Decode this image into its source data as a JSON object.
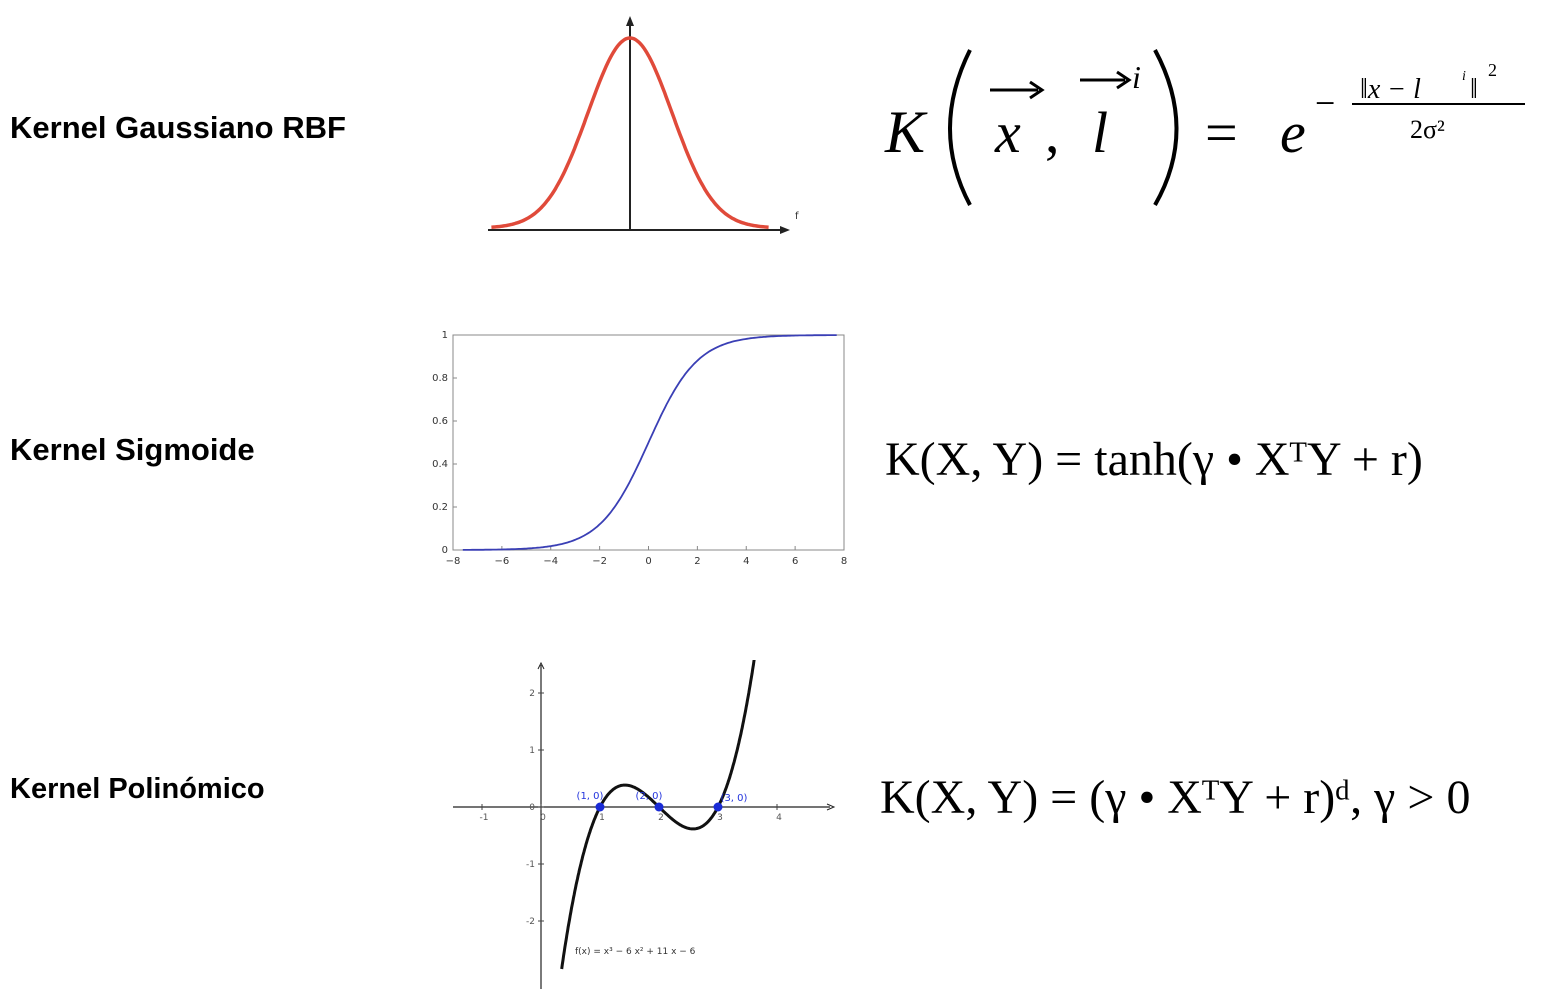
{
  "labels": {
    "rbf": "Kernel Gaussiano RBF",
    "sigmoid": "Kernel Sigmoide",
    "polynomial": "Kernel Polinómico"
  },
  "colors": {
    "gaussian_curve": "#e04a3a",
    "sigmoid_curve": "#3a3fb5",
    "polynomial_curve": "#111111",
    "root_points": "#1a2bd6"
  },
  "rbf_chart": {
    "x_axis_label": "f"
  },
  "sigmoid_chart": {
    "x_ticks": [
      "−8",
      "−6",
      "−4",
      "−2",
      "0",
      "2",
      "4",
      "6",
      "8"
    ],
    "y_ticks": [
      "0",
      "0.2",
      "0.4",
      "0.6",
      "0.8",
      "1"
    ]
  },
  "polynomial_chart": {
    "function_label": "f(x) = x³ − 6 x² + 11 x − 6",
    "x_ticks": [
      "-1",
      "0",
      "1",
      "2",
      "3",
      "4"
    ],
    "y_ticks": [
      "2",
      "1",
      "0",
      "-1",
      "-2"
    ],
    "roots": [
      {
        "label": "(1, 0)",
        "x": 1,
        "y": 0
      },
      {
        "label": "(2, 0)",
        "x": 2,
        "y": 0
      },
      {
        "label": "(3, 0)",
        "x": 3,
        "y": 0
      }
    ]
  },
  "chart_data": [
    {
      "type": "line",
      "title": "",
      "series": [
        {
          "name": "",
          "function": "exp(-x^2/2)"
        }
      ],
      "grid": false
    },
    {
      "type": "line",
      "title": "",
      "xlim": [
        -8,
        8
      ],
      "ylim": [
        0,
        1
      ],
      "series": [
        {
          "name": "",
          "function": "1/(1+exp(-x))"
        }
      ],
      "grid": false
    },
    {
      "type": "line",
      "title": "",
      "xlim": [
        -1.5,
        5
      ],
      "ylim": [
        -2.5,
        2.5
      ],
      "series": [
        {
          "name": "f(x) = x³ − 6 x² + 11 x − 6",
          "function": "x^3 - 6x^2 + 11x - 6"
        }
      ],
      "points": [
        [
          1,
          0
        ],
        [
          2,
          0
        ],
        [
          3,
          0
        ]
      ],
      "grid": false
    }
  ],
  "formulas": {
    "rbf": {
      "K": "K",
      "x": "x",
      "comma": ",",
      "l": "l",
      "i": "i",
      "eq": "=",
      "e": "e",
      "minus": "−",
      "numerator": "‖x − l",
      "num_i": "i",
      "num_close": "‖",
      "num_sq": "2",
      "denominator": "2σ²"
    },
    "sigmoid": "K(X, Y) = tanh(γ • XᵀY + r)",
    "polynomial": "K(X, Y) = (γ • XᵀY + r)ᵈ, γ > 0"
  }
}
